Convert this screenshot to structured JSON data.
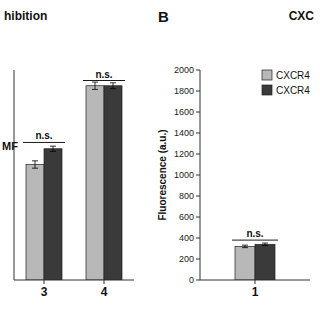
{
  "chart_data": [
    {
      "type": "bar",
      "title": "hibition",
      "ylabel": "MF",
      "categories": [
        "3",
        "4"
      ],
      "series": [
        {
          "color": "#b8b8b8",
          "values": [
            1100,
            1850
          ],
          "errors": [
            35,
            35
          ]
        },
        {
          "color": "#3a3a3a",
          "values": [
            1250,
            1850
          ],
          "errors": [
            25,
            28
          ]
        }
      ],
      "ylim": [
        0,
        2000
      ],
      "tick_labels": "x",
      "annotations": [
        {
          "text": "n.s.",
          "category": "3",
          "y": 1310
        },
        {
          "text": "n.s.",
          "category": "4",
          "y": 1900
        }
      ]
    },
    {
      "type": "bar",
      "title": "CXC",
      "ylabel": "Fluorescence (a.u.)",
      "categories": [
        "1"
      ],
      "series": [
        {
          "name": "CXCR4",
          "color": "#b8b8b8",
          "values": [
            320
          ],
          "errors": [
            12
          ]
        },
        {
          "name": "CXCR4",
          "color": "#3a3a3a",
          "values": [
            340
          ],
          "errors": [
            12
          ]
        }
      ],
      "ylim": [
        0,
        2000
      ],
      "yticks": [
        0,
        200,
        400,
        600,
        800,
        1000,
        1200,
        1400,
        1600,
        1800,
        2000
      ],
      "legend": "upper right",
      "annotations": [
        {
          "text": "B"
        },
        {
          "text": "n.s.",
          "category": "1",
          "y": 380
        }
      ]
    }
  ]
}
